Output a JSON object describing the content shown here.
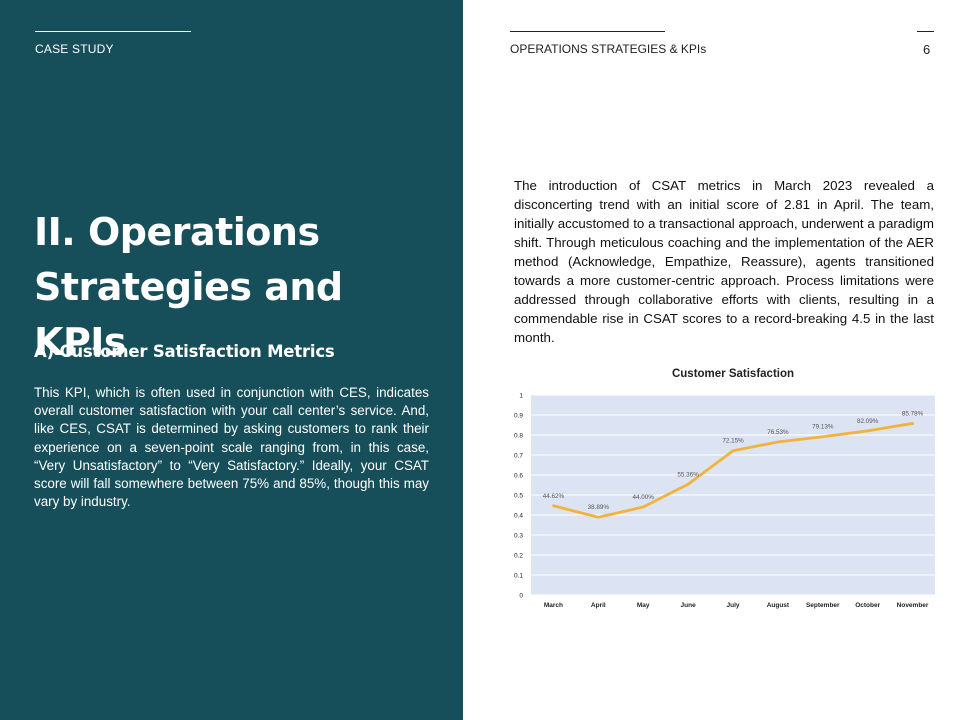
{
  "left": {
    "header": "CASE STUDY",
    "title": "II. Operations Strategies and KPIs",
    "subtitle": "A) Customer Satisfaction Metrics",
    "body": "This KPI, which is often used in conjunction with CES, indicates overall customer satisfaction with your call center’s service. And, like CES, CSAT is determined by asking customers to rank their experience on a seven-point scale ranging from, in this case, “Very Unsatisfactory” to “Very Satisfactory.” Ideally, your CSAT score will fall somewhere between 75% and 85%, though this may vary by industry."
  },
  "right": {
    "header": "OPERATIONS STRATEGIES & KPIs",
    "page_number": "6",
    "body": "The introduction of CSAT metrics in March 2023 revealed a disconcerting trend with an initial score of 2.81 in April. The team, initially accustomed to a transactional approach, underwent a paradigm shift. Through meticulous coaching and the implementation of the AER method (Acknowledge, Empathize, Reassure), agents transitioned towards a more customer-centric approach. Process limitations were addressed through collaborative efforts with clients, resulting in a commendable rise in CSAT scores to a record-breaking 4.5 in the last month."
  },
  "colors": {
    "panel": "#164e5a",
    "line": "#f0b43c",
    "plot_bg": "#dce3f2"
  },
  "chart_data": {
    "type": "line",
    "title": "Customer Satisfaction",
    "categories": [
      "March",
      "April",
      "May",
      "June",
      "July",
      "August",
      "September",
      "October",
      "November"
    ],
    "values": [
      0.4462,
      0.3889,
      0.44,
      0.5536,
      0.7215,
      0.7653,
      0.7913,
      0.8209,
      0.8578
    ],
    "data_labels": [
      "44.62%",
      "38.89%",
      "44.00%",
      "55.36%",
      "72.15%",
      "76.53%",
      "79.13%",
      "82.09%",
      "85.78%"
    ],
    "yticks": [
      "0",
      "0.1",
      "0.2",
      "0.3",
      "0.4",
      "0.5",
      "0.6",
      "0.7",
      "0.8",
      "0.9",
      "1"
    ],
    "ylim": [
      0,
      1
    ],
    "grid": true,
    "legend": "none"
  }
}
